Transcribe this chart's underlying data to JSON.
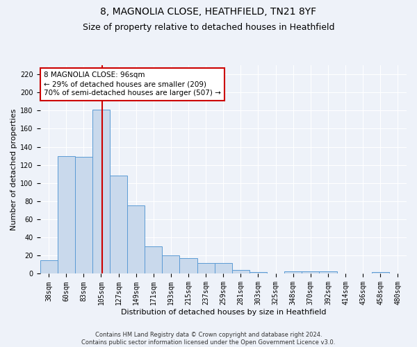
{
  "title1": "8, MAGNOLIA CLOSE, HEATHFIELD, TN21 8YF",
  "title2": "Size of property relative to detached houses in Heathfield",
  "xlabel": "Distribution of detached houses by size in Heathfield",
  "ylabel": "Number of detached properties",
  "categories": [
    "38sqm",
    "60sqm",
    "83sqm",
    "105sqm",
    "127sqm",
    "149sqm",
    "171sqm",
    "193sqm",
    "215sqm",
    "237sqm",
    "259sqm",
    "281sqm",
    "303sqm",
    "325sqm",
    "348sqm",
    "370sqm",
    "392sqm",
    "414sqm",
    "436sqm",
    "458sqm",
    "480sqm"
  ],
  "values": [
    15,
    130,
    129,
    181,
    108,
    75,
    30,
    20,
    17,
    12,
    12,
    4,
    2,
    0,
    3,
    3,
    3,
    0,
    0,
    2,
    0
  ],
  "bar_color": "#c9d9ec",
  "bar_edge_color": "#5b9bd5",
  "vline_color": "#cc0000",
  "vline_x": 3.05,
  "annotation_text": "8 MAGNOLIA CLOSE: 96sqm\n← 29% of detached houses are smaller (209)\n70% of semi-detached houses are larger (507) →",
  "annotation_box_color": "#ffffff",
  "annotation_box_edge": "#cc0000",
  "ylim": [
    0,
    230
  ],
  "yticks": [
    0,
    20,
    40,
    60,
    80,
    100,
    120,
    140,
    160,
    180,
    200,
    220
  ],
  "footnote": "Contains HM Land Registry data © Crown copyright and database right 2024.\nContains public sector information licensed under the Open Government Licence v3.0.",
  "background_color": "#eef2f9",
  "grid_color": "#ffffff",
  "title_fontsize": 10,
  "subtitle_fontsize": 9,
  "axis_label_fontsize": 8,
  "tick_fontsize": 7,
  "annotation_fontsize": 7.5,
  "footnote_fontsize": 6
}
